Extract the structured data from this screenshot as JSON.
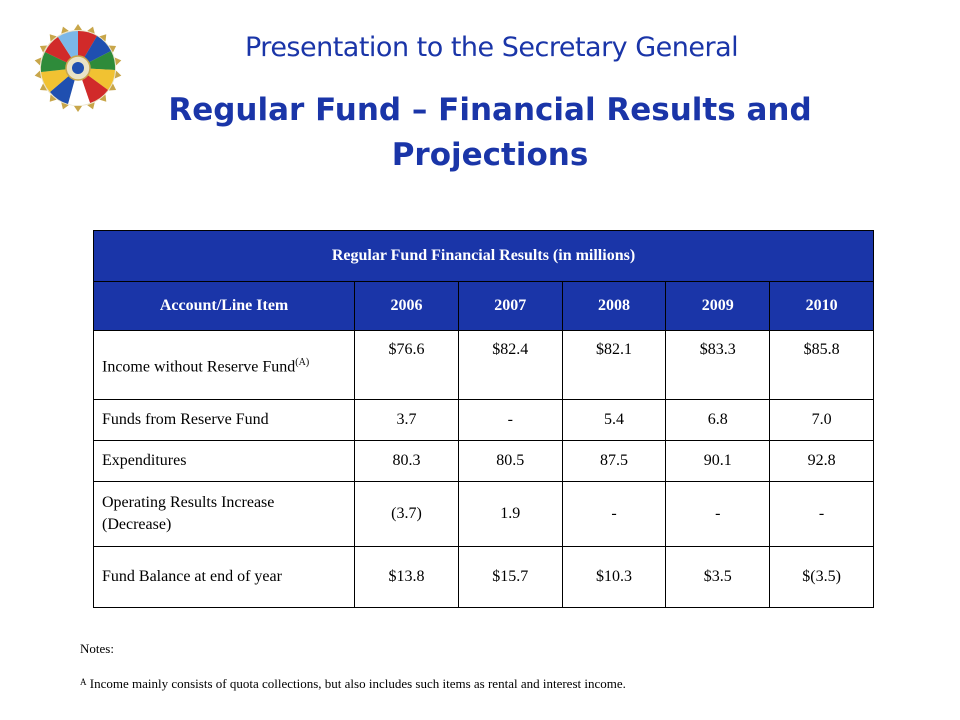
{
  "header": {
    "presentation_title": "Presentation to the Secretary General",
    "slide_title_line1": "Regular Fund – Financial Results and",
    "slide_title_line2": "Projections"
  },
  "table": {
    "title": "Regular Fund Financial Results (in millions)",
    "columns": [
      "Account/Line Item",
      "2006",
      "2007",
      "2008",
      "2009",
      "2010"
    ],
    "rows": [
      {
        "label": "Income without Reserve Fund",
        "label_sup": "(A)",
        "values": [
          "$76.6",
          "$82.4",
          "$82.1",
          "$83.3",
          "$85.8"
        ]
      },
      {
        "label": "Funds from Reserve Fund",
        "values": [
          "3.7",
          "-",
          "5.4",
          "6.8",
          "7.0"
        ]
      },
      {
        "label": "Expenditures",
        "values": [
          "80.3",
          "80.5",
          "87.5",
          "90.1",
          "92.8"
        ]
      },
      {
        "label": "Operating Results Increase (Decrease)",
        "values": [
          "(3.7)",
          "1.9",
          "-",
          "-",
          "-"
        ]
      },
      {
        "label": "Fund Balance at end of year",
        "values": [
          "$13.8",
          "$15.7",
          "$10.3",
          "$3.5",
          "$(3.5)"
        ]
      }
    ]
  },
  "notes": {
    "heading": "Notes:",
    "footnote_marker": "A",
    "footnote_text": "Income mainly consists of quota collections, but also includes such items as rental and interest income."
  },
  "logo": {
    "icon": "oas-emblem-icon"
  },
  "colors": {
    "title_blue": "#1a35a8",
    "header_bg": "#1a35a8",
    "header_text": "#ffffff"
  }
}
